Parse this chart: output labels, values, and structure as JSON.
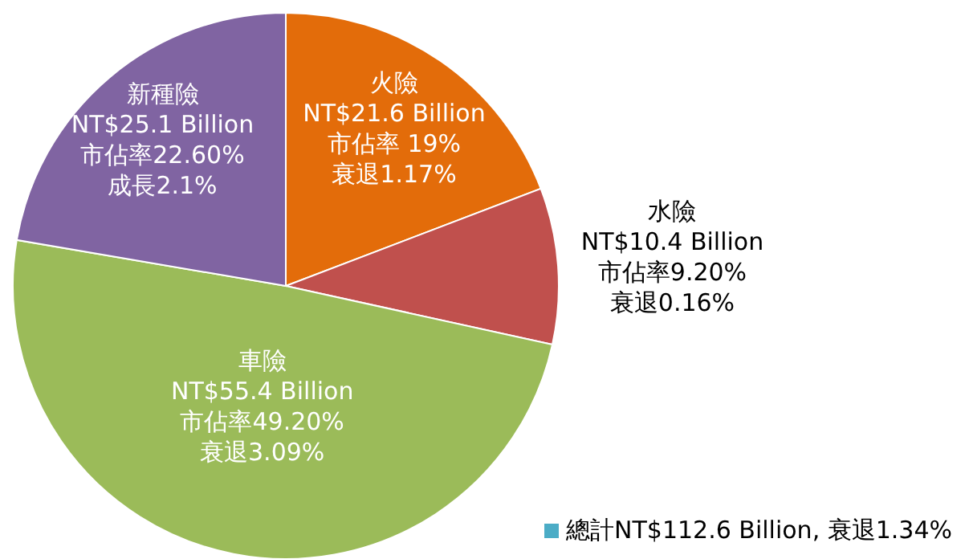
{
  "chart_data": {
    "type": "pie",
    "categories": [
      "火險",
      "水險",
      "車險",
      "新種險"
    ],
    "values": [
      21.6,
      10.4,
      55.4,
      25.1
    ],
    "colors": [
      "#e36c0a",
      "#c0504d",
      "#9bbb59",
      "#8064a2"
    ],
    "value_labels": [
      "NT$21.6 Billion\n市佔率 19%\n衰退1.17%",
      "NT$10.4 Billion\n市佔率9.20%\n衰退0.16%",
      "NT$55.4 Billion\n市佔率49.20%\n衰退3.09%",
      "NT$25.1 Billion\n市佔率22.60%\n成長2.1%"
    ],
    "annotations": [
      "總計NT$112.6 Billion, 衰退1.34%"
    ],
    "legend": false
  }
}
